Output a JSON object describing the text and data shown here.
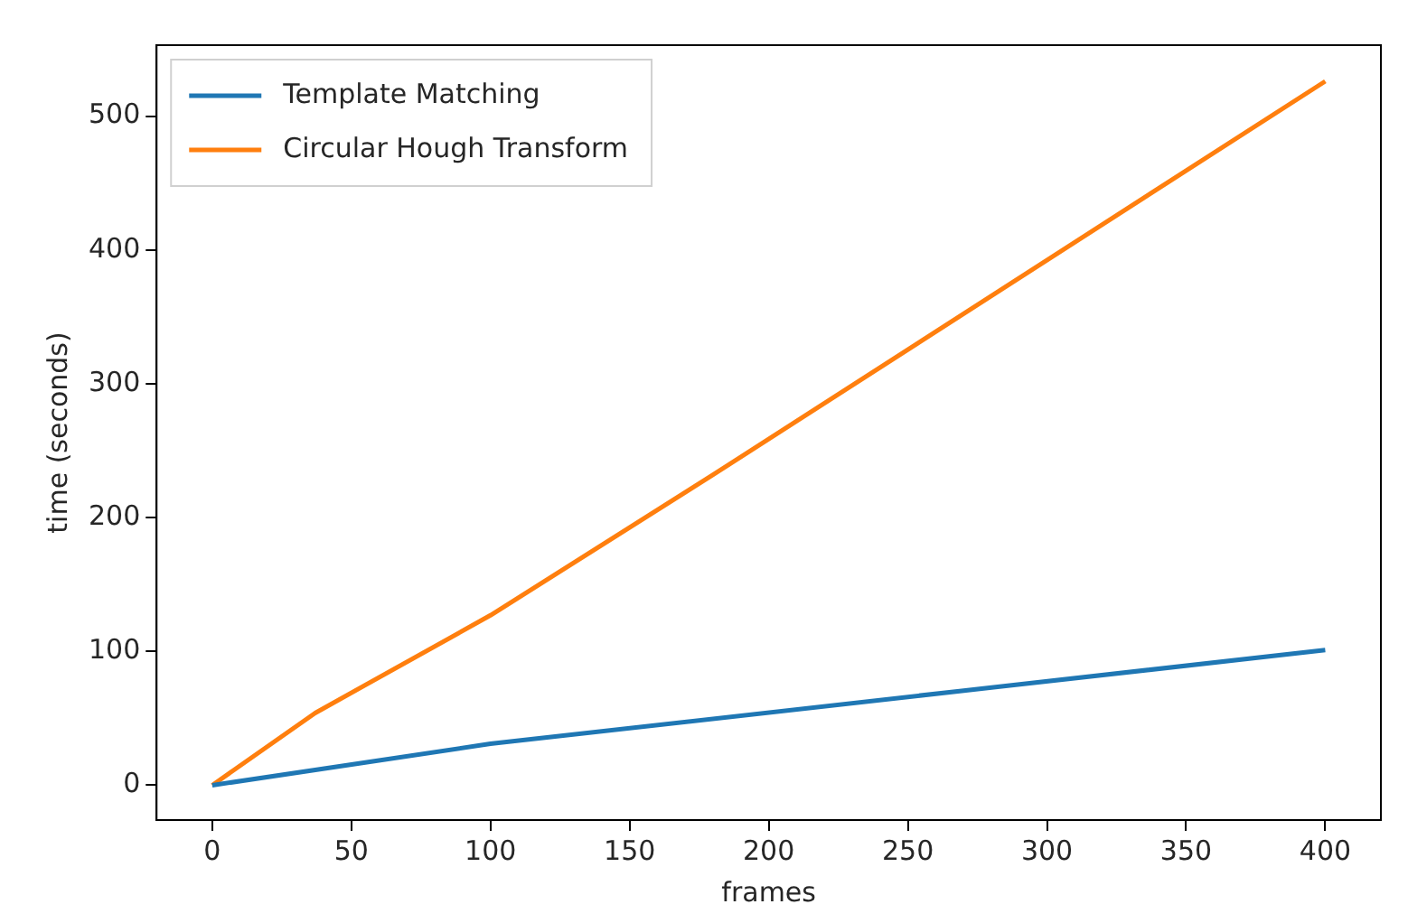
{
  "chart_data": {
    "type": "line",
    "xlabel": "frames",
    "ylabel": "time (seconds)",
    "xlim": [
      -20,
      420
    ],
    "xticks": [
      0,
      50,
      100,
      150,
      200,
      250,
      300,
      350,
      400
    ],
    "ylim": [
      -26,
      553
    ],
    "yticks": [
      0,
      100,
      200,
      300,
      400,
      500
    ],
    "grid": false,
    "legend": "top left",
    "series": [
      {
        "name": "Template Matching",
        "color": "#1f77b4",
        "x": [
          0,
          100,
          400
        ],
        "values": [
          0,
          31,
          101
        ]
      },
      {
        "name": "Circular Hough Transform",
        "color": "#ff7f0e",
        "x": [
          0,
          37,
          100,
          180,
          400
        ],
        "values": [
          0,
          54,
          127,
          232,
          526
        ]
      }
    ]
  }
}
